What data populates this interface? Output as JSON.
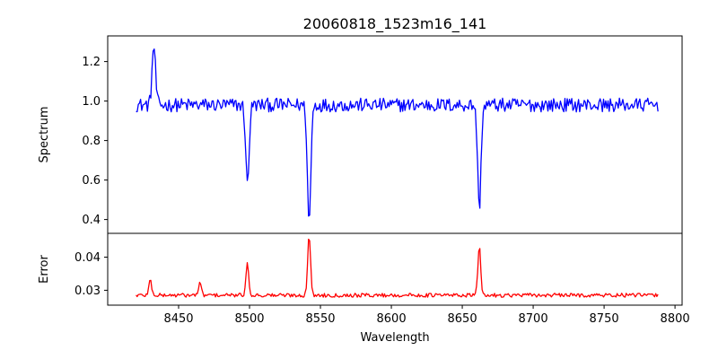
{
  "chart_data": [
    {
      "type": "line",
      "title": "20060818_1523m16_141",
      "xlabel": "",
      "ylabel": "Spectrum",
      "xlim": [
        8400,
        8805
      ],
      "ylim": [
        0.33,
        1.33
      ],
      "yticks": [
        0.4,
        0.6,
        0.8,
        1.0,
        1.2
      ],
      "ytick_labels": [
        "0.4",
        "0.6",
        "0.8",
        "1.0",
        "1.2"
      ],
      "xtick_labels_shown": false,
      "grid": false,
      "color": "#0000ff",
      "continuum": 0.98,
      "noise_amplitude": 0.035,
      "x_range": [
        8420,
        8788
      ],
      "features": [
        {
          "center": 8432.5,
          "value": 1.28
        },
        {
          "center": 8498.5,
          "value": 0.58
        },
        {
          "center": 8542.0,
          "value": 0.38
        },
        {
          "center": 8662.0,
          "value": 0.46
        }
      ]
    },
    {
      "type": "line",
      "title": "",
      "xlabel": "Wavelength",
      "ylabel": "Error",
      "xlim": [
        8400,
        8805
      ],
      "ylim": [
        0.0255,
        0.0472
      ],
      "xticks": [
        8450,
        8500,
        8550,
        8600,
        8650,
        8700,
        8750,
        8800
      ],
      "xtick_labels": [
        "8450",
        "8500",
        "8550",
        "8600",
        "8650",
        "8700",
        "8750",
        "8800"
      ],
      "yticks": [
        0.03,
        0.04
      ],
      "ytick_labels": [
        "0.03",
        "0.04"
      ],
      "grid": false,
      "color": "#ff0000",
      "continuum": 0.0285,
      "noise_amplitude": 0.0006,
      "x_range": [
        8420,
        8788
      ],
      "features": [
        {
          "center": 8430.0,
          "value": 0.033
        },
        {
          "center": 8465.0,
          "value": 0.032
        },
        {
          "center": 8498.5,
          "value": 0.0378
        },
        {
          "center": 8542.0,
          "value": 0.0468
        },
        {
          "center": 8662.0,
          "value": 0.0432
        }
      ]
    }
  ]
}
